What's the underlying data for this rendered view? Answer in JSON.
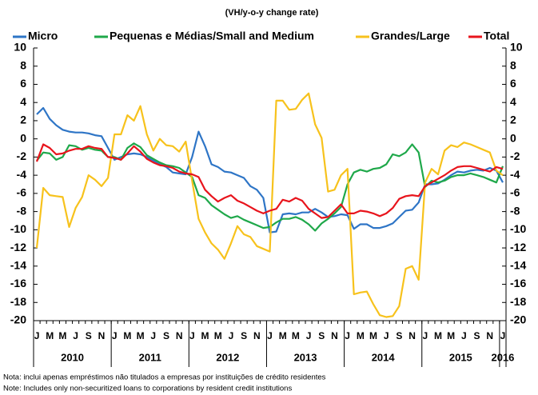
{
  "chart_data": {
    "type": "line",
    "title": "(VH/y-o-y change rate)",
    "categories": [
      "J",
      null,
      "M",
      null,
      "M",
      null,
      "J",
      null,
      "S",
      null,
      "N",
      null,
      "J",
      null,
      "M",
      null,
      "M",
      null,
      "J",
      null,
      "S",
      null,
      "N",
      null,
      "J",
      null,
      "M",
      null,
      "M",
      null,
      "J",
      null,
      "S",
      null,
      "N",
      null,
      "J",
      null,
      "M",
      null,
      "M",
      null,
      "J",
      null,
      "S",
      null,
      "N",
      null,
      "J",
      null,
      "M",
      null,
      "M",
      null,
      "J",
      null,
      "S",
      null,
      "N",
      null,
      "J",
      null,
      "M",
      null,
      "M",
      null,
      "J",
      null,
      "S",
      null,
      "N",
      null,
      "J"
    ],
    "year_labels": [
      "2010",
      "2011",
      "2012",
      "2013",
      "2014",
      "2015",
      "2016"
    ],
    "ylim": [
      -20,
      10
    ],
    "yticks": [
      -20,
      -18,
      -16,
      -14,
      -12,
      -10,
      -8,
      -6,
      -4,
      -2,
      0,
      2,
      4,
      6,
      8,
      10
    ],
    "series": [
      {
        "name": "Micro",
        "color": "#2e75c6",
        "values": [
          2.7,
          3.4,
          2.2,
          1.5,
          1.0,
          0.8,
          0.7,
          0.7,
          0.6,
          0.4,
          0.3,
          -1.0,
          -2.3,
          -2.0,
          -1.7,
          -1.6,
          -1.7,
          -2.0,
          -2.4,
          -2.8,
          -3.1,
          -3.7,
          -3.8,
          -3.9,
          -2.0,
          0.8,
          -0.8,
          -2.8,
          -3.1,
          -3.6,
          -3.7,
          -4.0,
          -4.3,
          -5.2,
          -5.6,
          -6.5,
          -10.3,
          -10.2,
          -8.3,
          -8.2,
          -8.3,
          -8.1,
          -8.1,
          -7.7,
          -8.1,
          -8.6,
          -8.5,
          -8.3,
          -8.4,
          -9.9,
          -9.4,
          -9.4,
          -9.8,
          -9.8,
          -9.6,
          -9.3,
          -8.6,
          -7.9,
          -7.8,
          -7.0,
          -5.0,
          -5.0,
          -4.9,
          -4.5,
          -4.0,
          -3.6,
          -3.7,
          -3.5,
          -3.4,
          -3.5,
          -3.2,
          -3.5,
          -4.8
        ]
      },
      {
        "name": "Pequenas e Médias/Small and Medium",
        "color": "#1fa84a",
        "values": [
          -2.4,
          -1.5,
          -1.6,
          -2.3,
          -2.0,
          -0.7,
          -0.8,
          -1.2,
          -1.0,
          -1.2,
          -1.3,
          -2.0,
          -2.0,
          -2.3,
          -1.0,
          -0.5,
          -0.9,
          -1.8,
          -2.2,
          -2.6,
          -2.9,
          -3.0,
          -3.2,
          -3.7,
          -4.2,
          -6.2,
          -6.5,
          -7.3,
          -7.8,
          -8.3,
          -8.7,
          -8.5,
          -8.9,
          -9.2,
          -9.5,
          -9.8,
          -9.7,
          -9.2,
          -8.8,
          -8.8,
          -8.6,
          -8.9,
          -9.4,
          -10.1,
          -9.3,
          -8.8,
          -8.2,
          -7.5,
          -5.0,
          -3.7,
          -3.4,
          -3.6,
          -3.3,
          -3.2,
          -2.8,
          -1.7,
          -1.9,
          -1.5,
          -0.6,
          -1.5,
          -5.3,
          -4.6,
          -4.8,
          -4.6,
          -4.2,
          -4.0,
          -4.0,
          -3.8,
          -4.0,
          -4.2,
          -4.5,
          -4.8,
          -3.0
        ]
      },
      {
        "name": "Grandes/Large",
        "color": "#f7c21c",
        "values": [
          -12.0,
          -5.4,
          -6.2,
          -6.3,
          -6.4,
          -9.7,
          -7.6,
          -6.4,
          -4.0,
          -4.5,
          -5.2,
          -4.3,
          0.5,
          0.5,
          2.6,
          2.0,
          3.6,
          0.5,
          -1.3,
          0.0,
          -0.7,
          -0.8,
          -1.4,
          -0.3,
          -4.6,
          -8.8,
          -10.3,
          -11.5,
          -12.2,
          -13.2,
          -11.5,
          -9.6,
          -10.5,
          -10.8,
          -11.8,
          -12.1,
          -12.4,
          4.2,
          4.2,
          3.2,
          3.3,
          4.3,
          5.0,
          1.6,
          0.1,
          -5.8,
          -5.6,
          -4.0,
          -3.3,
          -17.1,
          -16.9,
          -16.8,
          -18.2,
          -19.4,
          -19.6,
          -19.5,
          -18.4,
          -14.3,
          -14.0,
          -15.5,
          -4.8,
          -3.3,
          -3.9,
          -1.3,
          -0.7,
          -0.9,
          -0.4,
          -0.6,
          -0.9,
          -1.2,
          -1.5,
          -3.5,
          -4.0
        ]
      },
      {
        "name": "Total",
        "color": "#e8141c",
        "values": [
          -2.5,
          -0.6,
          -1.0,
          -1.7,
          -1.6,
          -1.3,
          -1.1,
          -1.1,
          -0.8,
          -1.0,
          -1.1,
          -2.0,
          -2.1,
          -2.3,
          -1.6,
          -0.8,
          -1.4,
          -2.2,
          -2.6,
          -2.9,
          -3.0,
          -3.2,
          -3.6,
          -3.8,
          -3.9,
          -4.2,
          -5.6,
          -6.3,
          -6.9,
          -6.5,
          -6.2,
          -6.8,
          -7.1,
          -7.5,
          -7.9,
          -8.2,
          -7.9,
          -7.7,
          -6.7,
          -6.9,
          -6.5,
          -6.8,
          -7.7,
          -8.2,
          -8.7,
          -8.6,
          -7.9,
          -7.2,
          -8.2,
          -8.2,
          -7.9,
          -8.0,
          -8.2,
          -8.5,
          -8.2,
          -7.6,
          -6.6,
          -6.3,
          -6.2,
          -6.3,
          -5.2,
          -4.8,
          -4.4,
          -4.0,
          -3.5,
          -3.1,
          -3.0,
          -3.0,
          -3.2,
          -3.4,
          -3.6,
          -3.1,
          -3.3
        ]
      }
    ]
  },
  "notes": [
    "Nota:  inclui apenas empréstimos  não titulados  a empresas  por instituições  de crédito residentes",
    "Note:  Includes  only non-securitized  loans to corporations  by resident  credit institutions"
  ]
}
